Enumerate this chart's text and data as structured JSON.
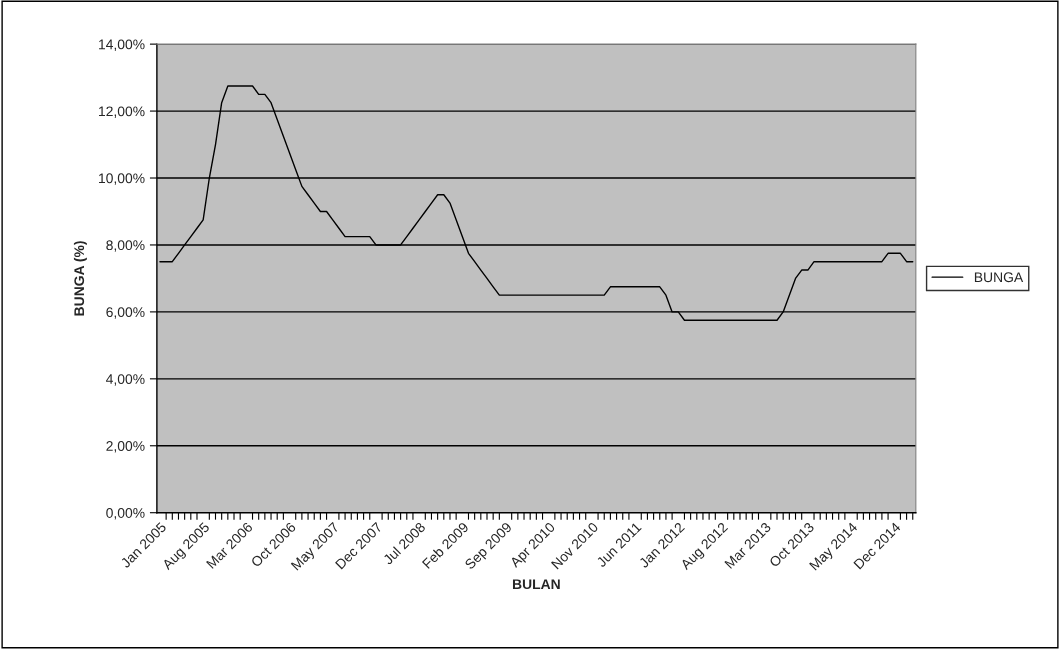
{
  "chart_data": {
    "type": "line",
    "xlabel": "BULAN",
    "ylabel": "BUNGA (%)",
    "categories": [
      "Jan 2005",
      null,
      null,
      null,
      null,
      null,
      null,
      "Aug 2005",
      null,
      null,
      null,
      null,
      null,
      null,
      "Mar 2006",
      null,
      null,
      null,
      null,
      null,
      null,
      "Oct 2006",
      null,
      null,
      null,
      null,
      null,
      null,
      "May 2007",
      null,
      null,
      null,
      null,
      null,
      null,
      "Dec 2007",
      null,
      null,
      null,
      null,
      null,
      null,
      "Jul 2008",
      null,
      null,
      null,
      null,
      null,
      null,
      "Feb 2009",
      null,
      null,
      null,
      null,
      null,
      null,
      "Sep 2009",
      null,
      null,
      null,
      null,
      null,
      null,
      "Apr 2010",
      null,
      null,
      null,
      null,
      null,
      null,
      "Nov 2010",
      null,
      null,
      null,
      null,
      null,
      null,
      "Jun 2011",
      null,
      null,
      null,
      null,
      null,
      null,
      "Jan 2012",
      null,
      null,
      null,
      null,
      null,
      null,
      "Aug 2012",
      null,
      null,
      null,
      null,
      null,
      null,
      "Mar 2013",
      null,
      null,
      null,
      null,
      null,
      null,
      "Oct 2013",
      null,
      null,
      null,
      null,
      null,
      null,
      "May 2014",
      null,
      null,
      null,
      null,
      null,
      null,
      "Dec 2014",
      null,
      null,
      null
    ],
    "series": [
      {
        "name": "BUNGA",
        "color": "#000000",
        "values": [
          7.5,
          7.5,
          7.5,
          7.75,
          8.0,
          8.25,
          8.5,
          8.75,
          10.0,
          11.0,
          12.25,
          12.75,
          12.75,
          12.75,
          12.75,
          12.75,
          12.5,
          12.5,
          12.25,
          11.75,
          11.25,
          10.75,
          10.25,
          9.75,
          9.5,
          9.25,
          9.0,
          9.0,
          8.75,
          8.5,
          8.25,
          8.25,
          8.25,
          8.25,
          8.25,
          8.0,
          8.0,
          8.0,
          8.0,
          8.0,
          8.25,
          8.5,
          8.75,
          9.0,
          9.25,
          9.5,
          9.5,
          9.25,
          8.75,
          8.25,
          7.75,
          7.5,
          7.25,
          7.0,
          6.75,
          6.5,
          6.5,
          6.5,
          6.5,
          6.5,
          6.5,
          6.5,
          6.5,
          6.5,
          6.5,
          6.5,
          6.5,
          6.5,
          6.5,
          6.5,
          6.5,
          6.5,
          6.5,
          6.75,
          6.75,
          6.75,
          6.75,
          6.75,
          6.75,
          6.75,
          6.75,
          6.75,
          6.5,
          6.0,
          6.0,
          5.75,
          5.75,
          5.75,
          5.75,
          5.75,
          5.75,
          5.75,
          5.75,
          5.75,
          5.75,
          5.75,
          5.75,
          5.75,
          5.75,
          5.75,
          5.75,
          6.0,
          6.5,
          7.0,
          7.25,
          7.25,
          7.5,
          7.5,
          7.5,
          7.5,
          7.5,
          7.5,
          7.5,
          7.5,
          7.5,
          7.5,
          7.5,
          7.5,
          7.75,
          7.75,
          7.75,
          7.5,
          7.5
        ]
      }
    ],
    "ylim": [
      0,
      14
    ],
    "yticks": [
      {
        "value": 0,
        "label": "0,00%"
      },
      {
        "value": 2,
        "label": "2,00%"
      },
      {
        "value": 4,
        "label": "4,00%"
      },
      {
        "value": 6,
        "label": "6,00%"
      },
      {
        "value": 8,
        "label": "8,00%"
      },
      {
        "value": 10,
        "label": "10,00%"
      },
      {
        "value": 12,
        "label": "12,00%"
      },
      {
        "value": 14,
        "label": "14,00%"
      }
    ],
    "grid": "y",
    "legend": "right",
    "line_style": "solid"
  }
}
